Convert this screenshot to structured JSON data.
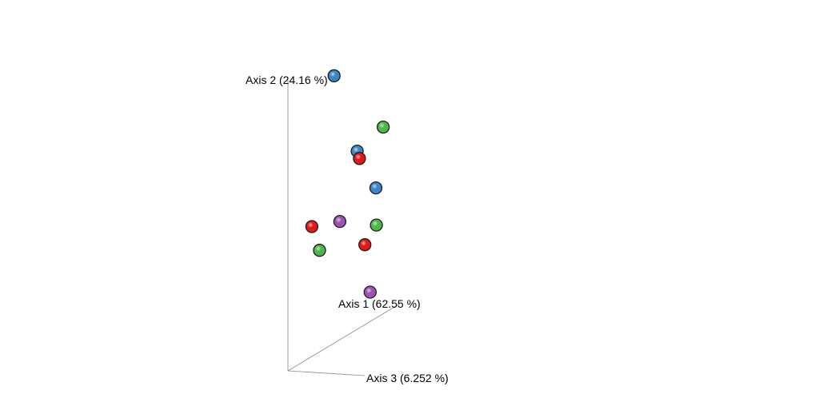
{
  "chart_data": {
    "type": "scatter",
    "subtype": "3d-pcoa",
    "title": "",
    "axes": {
      "x": {
        "label": "Axis 1 (62.55 %)"
      },
      "y": {
        "label": "Axis 2 (24.16 %)"
      },
      "z": {
        "label": "Axis 3 (6.252 %)"
      }
    },
    "legend": "none",
    "grid": false,
    "point_style": "shaded-sphere",
    "colors": {
      "blue": "#3a86c8",
      "green": "#4cb84c",
      "red": "#e01818",
      "purple": "#9b54b4"
    },
    "series": [
      {
        "color": "blue",
        "points": [
          {
            "x": 0.33,
            "y": 0.94,
            "z": 0.12
          },
          {
            "x": 0.55,
            "y": 0.63,
            "z": 0.1
          },
          {
            "x": 0.58,
            "y": 0.5,
            "z": 0.3
          }
        ]
      },
      {
        "color": "green",
        "points": [
          {
            "x": 0.7,
            "y": 0.68,
            "z": 0.22
          },
          {
            "x": 0.55,
            "y": 0.38,
            "z": 0.35
          },
          {
            "x": 0.2,
            "y": 0.37,
            "z": 0.12
          }
        ]
      },
      {
        "color": "red",
        "points": [
          {
            "x": 0.57,
            "y": 0.6,
            "z": 0.1
          },
          {
            "x": 0.2,
            "y": 0.45,
            "z": 0.02
          },
          {
            "x": 0.55,
            "y": 0.31,
            "z": 0.2
          }
        ]
      },
      {
        "color": "purple",
        "points": [
          {
            "x": 0.45,
            "y": 0.41,
            "z": 0.02
          },
          {
            "x": 0.7,
            "y": 0.11,
            "z": 0.05
          }
        ]
      }
    ]
  }
}
